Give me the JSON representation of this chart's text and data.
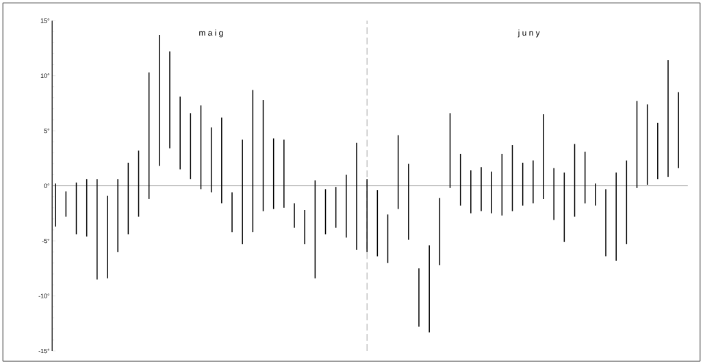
{
  "chart_data": {
    "type": "bar",
    "color": "#000000",
    "tick_labels": "y",
    "annotations": [
      "m a i g",
      "j u n y"
    ],
    "categories": [
      null,
      null,
      null,
      null,
      null,
      null,
      null,
      null,
      null,
      null,
      null,
      null,
      null,
      null,
      null,
      null,
      null,
      null,
      null,
      null,
      null,
      null,
      null,
      null,
      null,
      null,
      null,
      null,
      null,
      null,
      null,
      null,
      null,
      null,
      null,
      null,
      null,
      null,
      null,
      null,
      null,
      null,
      null,
      null,
      null,
      null,
      null,
      null,
      null,
      null,
      null,
      null,
      null,
      null,
      null,
      null,
      null,
      null,
      null,
      null,
      null
    ],
    "base": [
      -3.7,
      -2.8,
      -4.4,
      -4.6,
      -8.5,
      -8.4,
      -6.0,
      -4.4,
      -2.8,
      -1.2,
      1.8,
      3.4,
      1.5,
      0.6,
      -0.3,
      -0.6,
      -1.6,
      -4.2,
      -5.3,
      -4.2,
      -2.3,
      -2.1,
      -2.0,
      -3.8,
      -5.3,
      -8.4,
      -4.4,
      -3.8,
      -4.7,
      -5.8,
      -6.0,
      -6.4,
      -7.0,
      -2.1,
      -4.9,
      -12.8,
      -13.3,
      -7.2,
      -0.2,
      -1.8,
      -2.5,
      -2.3,
      -2.5,
      -2.7,
      -2.3,
      -1.8,
      -1.6,
      -1.2,
      -3.1,
      -5.1,
      -2.8,
      -1.6,
      -1.8,
      -6.4,
      -6.8,
      -5.3,
      -0.2,
      0.1,
      0.6,
      0.8,
      1.6
    ],
    "values": [
      3.9,
      2.3,
      4.7,
      5.2,
      9.1,
      7.5,
      6.6,
      6.5,
      6.0,
      11.5,
      11.9,
      8.8,
      6.6,
      6.0,
      7.6,
      5.9,
      7.8,
      3.6,
      9.5,
      12.9,
      10.1,
      6.4,
      6.2,
      2.2,
      3.1,
      8.9,
      4.1,
      3.7,
      5.7,
      9.7,
      6.6,
      6.0,
      4.4,
      6.7,
      6.9,
      5.3,
      7.9,
      6.1,
      6.8,
      4.7,
      3.9,
      4.0,
      3.8,
      5.6,
      6.0,
      3.9,
      3.9,
      7.7,
      4.7,
      6.3,
      6.6,
      4.7,
      2.0,
      6.1,
      8.0,
      7.6,
      7.9,
      7.3,
      5.1,
      10.6,
      6.9
    ],
    "ylim": [
      -15,
      15
    ],
    "yticks": [
      {
        "value": -15,
        "label": "-15°"
      },
      {
        "value": -10,
        "label": "-10°"
      },
      {
        "value": -5,
        "label": "-5°"
      },
      {
        "value": 0,
        "label": "0°"
      },
      {
        "value": 5,
        "label": "5°"
      },
      {
        "value": 10,
        "label": "10°"
      },
      {
        "value": 15,
        "label": "15°"
      }
    ],
    "ref_lines": [
      {
        "axis": "y",
        "value": 0,
        "color": "#555555",
        "line_style": "solid"
      }
    ]
  }
}
